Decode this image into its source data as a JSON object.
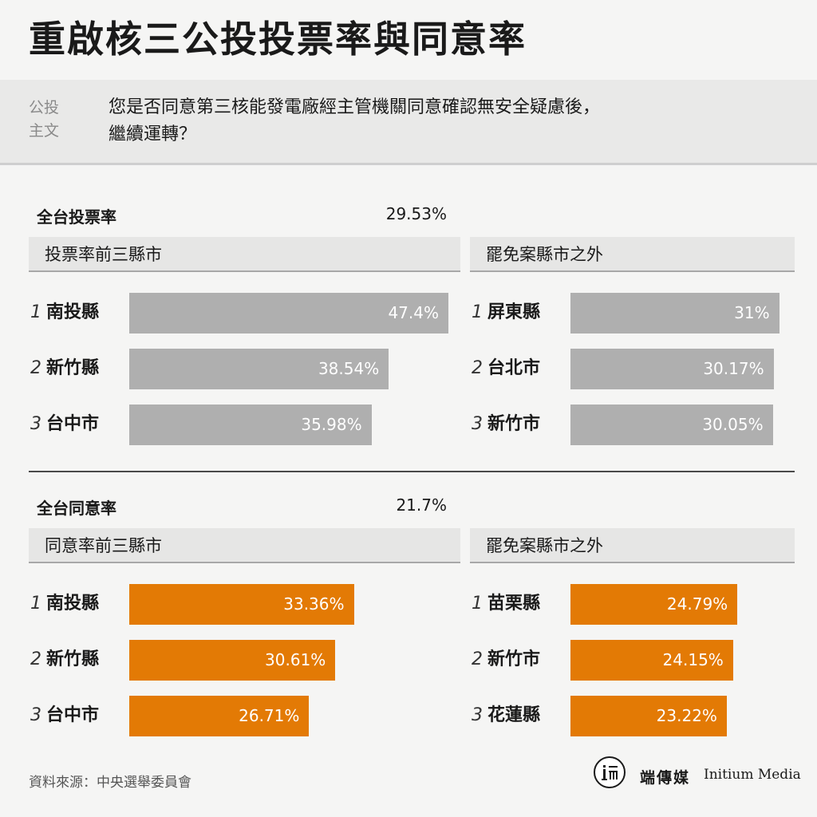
{
  "title": "重啟核三公投投票率與同意率",
  "question": {
    "label_line1": "公投",
    "label_line2": "主文",
    "text_line1": "您是否同意第三核能發電廠經主管機關同意確認無安全疑慮後，",
    "text_line2": "繼續運轉？"
  },
  "chart_data": [
    {
      "type": "bar",
      "title": "全台投票率",
      "total": "29.53%",
      "color": "#afafaf",
      "groups": [
        {
          "name": "投票率前三縣市",
          "categories": [
            "南投縣",
            "新竹縣",
            "台中市"
          ],
          "values": [
            47.4,
            38.54,
            35.98
          ],
          "labels": [
            "47.4%",
            "38.54%",
            "35.98%"
          ]
        },
        {
          "name": "罷免案縣市之外",
          "categories": [
            "屏東縣",
            "台北市",
            "新竹市"
          ],
          "values": [
            31,
            30.17,
            30.05
          ],
          "labels": [
            "31%",
            "30.17%",
            "30.05%"
          ]
        }
      ]
    },
    {
      "type": "bar",
      "title": "全台同意率",
      "total": "21.7%",
      "color": "#e37a05",
      "groups": [
        {
          "name": "同意率前三縣市",
          "categories": [
            "南投縣",
            "新竹縣",
            "台中市"
          ],
          "values": [
            33.36,
            30.61,
            26.71
          ],
          "labels": [
            "33.36%",
            "30.61%",
            "26.71%"
          ]
        },
        {
          "name": "罷免案縣市之外",
          "categories": [
            "苗栗縣",
            "新竹市",
            "花蓮縣"
          ],
          "values": [
            24.79,
            24.15,
            23.22
          ],
          "labels": [
            "24.79%",
            "24.15%",
            "23.22%"
          ]
        }
      ]
    }
  ],
  "ranks": [
    "1",
    "2",
    "3"
  ],
  "source": "資料來源：中央選舉委員會",
  "brand": {
    "cn": "端傳媒",
    "en": "Initium Media",
    "logo_icon": "initium-logo-icon"
  }
}
